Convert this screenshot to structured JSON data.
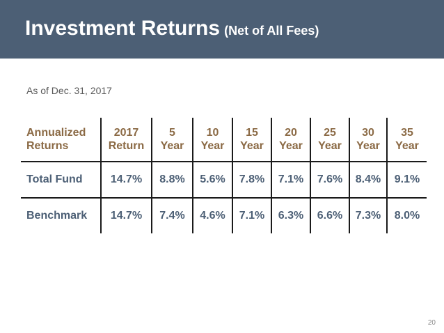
{
  "header": {
    "title": "Investment Returns",
    "subtitle": "(Net of All Fees)",
    "bg_color": "#4c5f75"
  },
  "as_of": "As of Dec. 31, 2017",
  "table": {
    "headers": [
      [
        "Annualized",
        "Returns"
      ],
      [
        "2017",
        "Return"
      ],
      [
        "5",
        "Year"
      ],
      [
        "10",
        "Year"
      ],
      [
        "15",
        "Year"
      ],
      [
        "20",
        "Year"
      ],
      [
        "25",
        "Year"
      ],
      [
        "30",
        "Year"
      ],
      [
        "35",
        "Year"
      ]
    ],
    "rows": [
      {
        "label": "Total Fund",
        "values": [
          "14.7%",
          "8.8%",
          "5.6%",
          "7.8%",
          "7.1%",
          "7.6%",
          "8.4%",
          "9.1%"
        ]
      },
      {
        "label": "Benchmark",
        "values": [
          "14.7%",
          "7.4%",
          "4.6%",
          "7.1%",
          "6.3%",
          "6.6%",
          "7.3%",
          "8.0%"
        ]
      }
    ],
    "header_color": "#8b6a45",
    "value_color": "#4c5f75"
  },
  "page_number": "20"
}
